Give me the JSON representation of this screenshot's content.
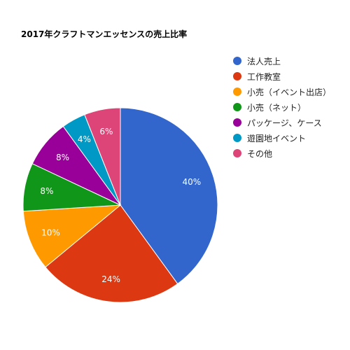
{
  "chart_data": {
    "type": "pie",
    "title": "2017年クラフトマンエッセンスの売上比率",
    "slices": [
      {
        "label": "法人売上",
        "value": 40,
        "display": "40%",
        "color": "#3366cc"
      },
      {
        "label": "工作教室",
        "value": 24,
        "display": "24%",
        "color": "#dc3912"
      },
      {
        "label": "小売（イベント出店）",
        "value": 10,
        "display": "10%",
        "color": "#ff9900"
      },
      {
        "label": "小売（ネット）",
        "value": 8,
        "display": "8%",
        "color": "#109618"
      },
      {
        "label": "パッケージ、ケース",
        "value": 8,
        "display": "8%",
        "color": "#990099"
      },
      {
        "label": "遊園地イベント",
        "value": 4,
        "display": "4%",
        "color": "#0099c6"
      },
      {
        "label": "その他",
        "value": 6,
        "display": "6%",
        "color": "#dd4477"
      }
    ],
    "legend_position": "right"
  }
}
